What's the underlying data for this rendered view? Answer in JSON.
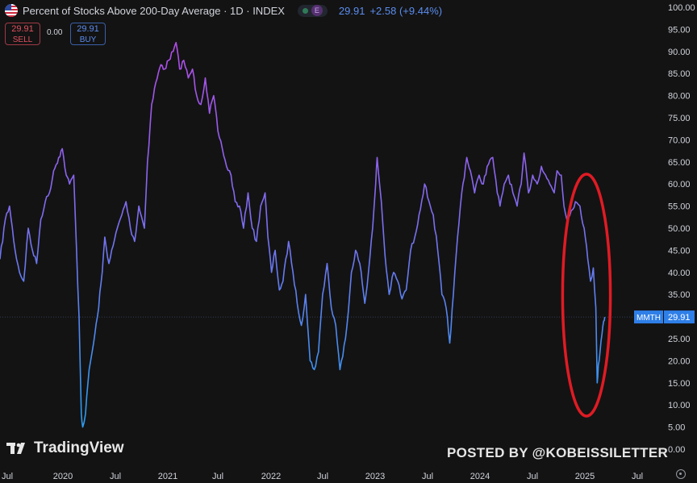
{
  "header": {
    "title": "Percent of Stocks Above 200-Day Average · 1D · INDEX",
    "flag_icon": "us-flag-icon",
    "status_icon": "market-status-icon",
    "e_badge": "E",
    "last_value": "29.91",
    "change": "+2.58 (+9.44%)"
  },
  "trade": {
    "sell_value": "29.91",
    "sell_label": "SELL",
    "spread": "0.00",
    "buy_value": "29.91",
    "buy_label": "BUY"
  },
  "branding": {
    "logo_text": "TradingView",
    "posted_by": "POSTED BY @KOBEISSILETTER"
  },
  "price_tag": {
    "symbol": "MMTH",
    "value": "29.91"
  },
  "colors": {
    "background": "#131313",
    "line_top": "#b04de8",
    "line_bottom": "#2f9bf0",
    "annotation": "#e01b24",
    "price_tag": "#2f7fe8"
  },
  "chart_data": {
    "type": "line",
    "title": "Percent of Stocks Above 200-Day Average",
    "y_axis_position": "right",
    "ylim": [
      0,
      100
    ],
    "y_ticks": [
      "100.00",
      "95.00",
      "90.00",
      "85.00",
      "80.00",
      "75.00",
      "70.00",
      "65.00",
      "60.00",
      "55.00",
      "50.00",
      "45.00",
      "40.00",
      "35.00",
      "30.00",
      "25.00",
      "20.00",
      "15.00",
      "10.00",
      "5.00",
      "0.00"
    ],
    "x_ticks": [
      "Jul",
      "2020",
      "Jul",
      "2021",
      "Jul",
      "2022",
      "Jul",
      "2023",
      "Jul",
      "2024",
      "Jul",
      "2025",
      "Jul"
    ],
    "x_range": [
      "2019-06-01",
      "2025-08-15"
    ],
    "series": [
      {
        "values": [
          [
            "2019-06-01",
            43
          ],
          [
            "2019-06-20",
            52
          ],
          [
            "2019-07-05",
            55
          ],
          [
            "2019-07-25",
            45
          ],
          [
            "2019-08-10",
            40
          ],
          [
            "2019-08-25",
            38
          ],
          [
            "2019-09-10",
            50
          ],
          [
            "2019-09-25",
            45
          ],
          [
            "2019-10-10",
            42
          ],
          [
            "2019-10-25",
            52
          ],
          [
            "2019-11-10",
            56
          ],
          [
            "2019-11-25",
            58
          ],
          [
            "2019-12-10",
            63
          ],
          [
            "2019-12-28",
            66
          ],
          [
            "2020-01-10",
            68
          ],
          [
            "2020-01-24",
            62
          ],
          [
            "2020-02-05",
            60
          ],
          [
            "2020-02-20",
            62
          ],
          [
            "2020-03-01",
            45
          ],
          [
            "2020-03-10",
            30
          ],
          [
            "2020-03-18",
            8
          ],
          [
            "2020-03-23",
            5
          ],
          [
            "2020-04-02",
            8
          ],
          [
            "2020-04-15",
            18
          ],
          [
            "2020-05-01",
            24
          ],
          [
            "2020-05-15",
            30
          ],
          [
            "2020-06-01",
            40
          ],
          [
            "2020-06-10",
            48
          ],
          [
            "2020-06-25",
            42
          ],
          [
            "2020-07-10",
            46
          ],
          [
            "2020-07-25",
            50
          ],
          [
            "2020-08-10",
            53
          ],
          [
            "2020-08-25",
            56
          ],
          [
            "2020-09-10",
            50
          ],
          [
            "2020-09-25",
            47
          ],
          [
            "2020-10-10",
            55
          ],
          [
            "2020-10-30",
            50
          ],
          [
            "2020-11-10",
            65
          ],
          [
            "2020-11-25",
            78
          ],
          [
            "2020-12-10",
            83
          ],
          [
            "2020-12-28",
            87
          ],
          [
            "2021-01-10",
            86
          ],
          [
            "2021-01-25",
            88
          ],
          [
            "2021-02-10",
            90
          ],
          [
            "2021-02-20",
            92
          ],
          [
            "2021-03-05",
            86
          ],
          [
            "2021-03-20",
            88
          ],
          [
            "2021-04-05",
            84
          ],
          [
            "2021-04-20",
            86
          ],
          [
            "2021-05-05",
            80
          ],
          [
            "2021-05-20",
            78
          ],
          [
            "2021-06-05",
            84
          ],
          [
            "2021-06-20",
            76
          ],
          [
            "2021-07-05",
            80
          ],
          [
            "2021-07-20",
            72
          ],
          [
            "2021-08-05",
            68
          ],
          [
            "2021-08-20",
            64
          ],
          [
            "2021-09-05",
            62
          ],
          [
            "2021-09-20",
            56
          ],
          [
            "2021-10-05",
            55
          ],
          [
            "2021-10-20",
            50
          ],
          [
            "2021-11-05",
            58
          ],
          [
            "2021-11-20",
            50
          ],
          [
            "2021-12-05",
            47
          ],
          [
            "2021-12-20",
            55
          ],
          [
            "2022-01-05",
            58
          ],
          [
            "2022-01-15",
            48
          ],
          [
            "2022-01-28",
            40
          ],
          [
            "2022-02-10",
            45
          ],
          [
            "2022-02-25",
            36
          ],
          [
            "2022-03-10",
            38
          ],
          [
            "2022-03-30",
            47
          ],
          [
            "2022-04-15",
            40
          ],
          [
            "2022-04-30",
            33
          ],
          [
            "2022-05-15",
            28
          ],
          [
            "2022-05-30",
            35
          ],
          [
            "2022-06-15",
            20
          ],
          [
            "2022-06-30",
            18
          ],
          [
            "2022-07-15",
            22
          ],
          [
            "2022-07-30",
            35
          ],
          [
            "2022-08-15",
            42
          ],
          [
            "2022-08-30",
            32
          ],
          [
            "2022-09-15",
            28
          ],
          [
            "2022-09-30",
            18
          ],
          [
            "2022-10-10",
            21
          ],
          [
            "2022-10-25",
            28
          ],
          [
            "2022-11-10",
            40
          ],
          [
            "2022-11-25",
            45
          ],
          [
            "2022-12-10",
            42
          ],
          [
            "2022-12-28",
            33
          ],
          [
            "2023-01-10",
            40
          ],
          [
            "2023-01-25",
            50
          ],
          [
            "2023-02-05",
            60
          ],
          [
            "2023-02-10",
            66
          ],
          [
            "2023-02-25",
            56
          ],
          [
            "2023-03-10",
            44
          ],
          [
            "2023-03-25",
            35
          ],
          [
            "2023-04-10",
            40
          ],
          [
            "2023-04-25",
            38
          ],
          [
            "2023-05-10",
            34
          ],
          [
            "2023-05-25",
            36
          ],
          [
            "2023-06-10",
            45
          ],
          [
            "2023-06-25",
            48
          ],
          [
            "2023-07-10",
            53
          ],
          [
            "2023-07-30",
            60
          ],
          [
            "2023-08-15",
            56
          ],
          [
            "2023-08-30",
            53
          ],
          [
            "2023-09-15",
            45
          ],
          [
            "2023-09-30",
            35
          ],
          [
            "2023-10-15",
            32
          ],
          [
            "2023-10-28",
            24
          ],
          [
            "2023-11-10",
            35
          ],
          [
            "2023-11-25",
            48
          ],
          [
            "2023-12-10",
            58
          ],
          [
            "2023-12-28",
            66
          ],
          [
            "2024-01-10",
            63
          ],
          [
            "2024-01-25",
            58
          ],
          [
            "2024-02-10",
            62
          ],
          [
            "2024-02-25",
            60
          ],
          [
            "2024-03-10",
            64
          ],
          [
            "2024-03-30",
            66
          ],
          [
            "2024-04-15",
            58
          ],
          [
            "2024-04-25",
            55
          ],
          [
            "2024-05-10",
            60
          ],
          [
            "2024-05-25",
            62
          ],
          [
            "2024-06-10",
            58
          ],
          [
            "2024-06-25",
            55
          ],
          [
            "2024-07-10",
            60
          ],
          [
            "2024-07-20",
            67
          ],
          [
            "2024-08-05",
            58
          ],
          [
            "2024-08-20",
            62
          ],
          [
            "2024-09-05",
            60
          ],
          [
            "2024-09-20",
            64
          ],
          [
            "2024-10-05",
            62
          ],
          [
            "2024-10-20",
            60
          ],
          [
            "2024-11-05",
            58
          ],
          [
            "2024-11-15",
            63
          ],
          [
            "2024-11-30",
            62
          ],
          [
            "2024-12-10",
            55
          ],
          [
            "2024-12-20",
            52
          ],
          [
            "2025-01-05",
            54
          ],
          [
            "2025-01-20",
            56
          ],
          [
            "2025-02-05",
            55
          ],
          [
            "2025-02-20",
            50
          ],
          [
            "2025-03-05",
            43
          ],
          [
            "2025-03-15",
            38
          ],
          [
            "2025-03-25",
            41
          ],
          [
            "2025-04-03",
            32
          ],
          [
            "2025-04-08",
            15
          ],
          [
            "2025-04-12",
            19
          ],
          [
            "2025-04-18",
            22
          ],
          [
            "2025-04-25",
            26
          ],
          [
            "2025-05-01",
            29
          ],
          [
            "2025-05-05",
            29.91
          ]
        ]
      }
    ],
    "current_value": 29.91,
    "current_label": "MMTH",
    "annotation": {
      "type": "ellipse",
      "color": "#e01b24",
      "around": [
        "2024-12-05",
        "2025-05-25"
      ]
    }
  }
}
